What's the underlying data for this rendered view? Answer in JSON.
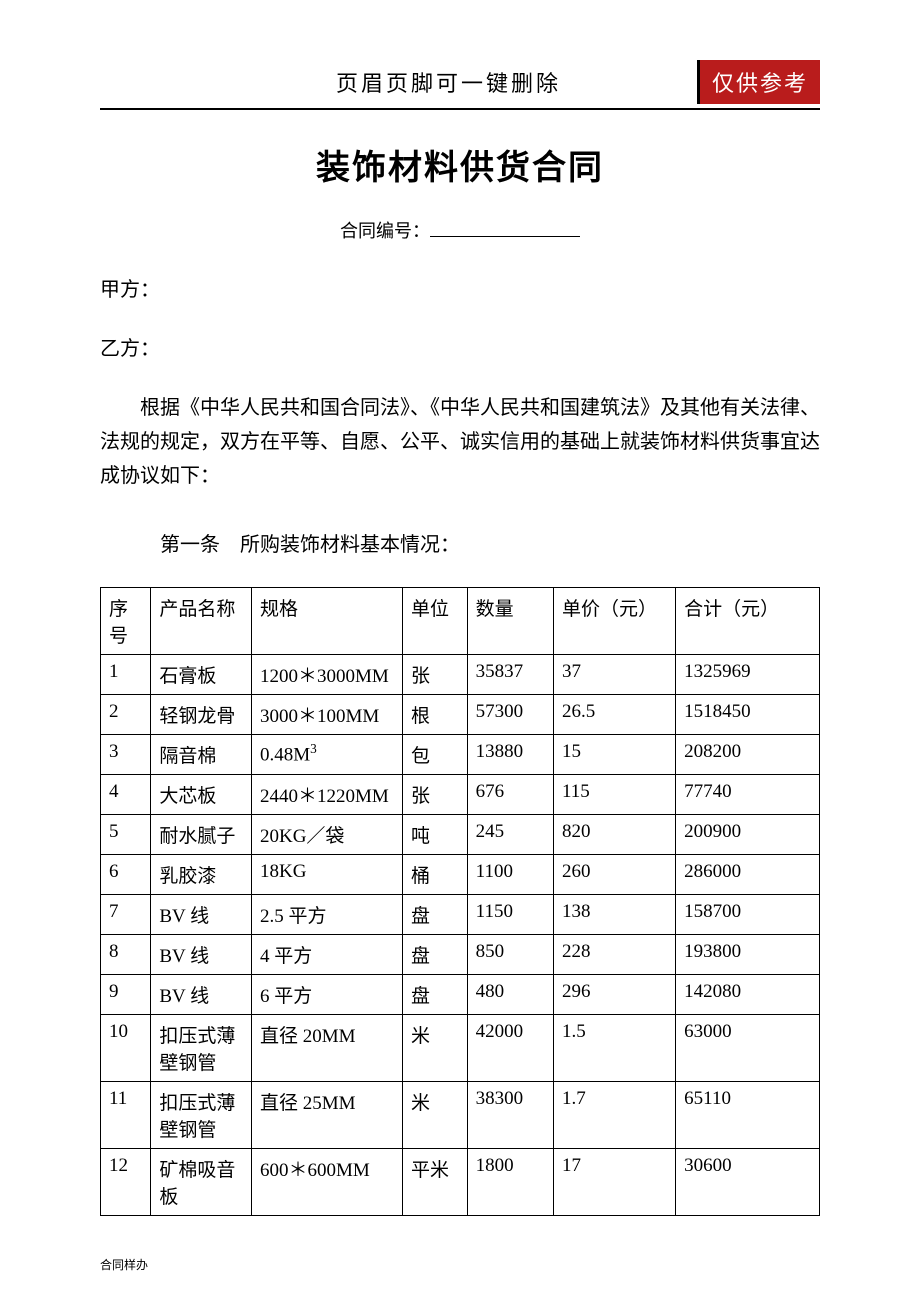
{
  "header": {
    "text": "页眉页脚可一键删除",
    "badge": "仅供参考"
  },
  "title": "装饰材料供货合同",
  "contract_number_label": "合同编号：",
  "party_a": "甲方：",
  "party_b": "乙方：",
  "intro": "根据《中华人民共和国合同法》、《中华人民共和国建筑法》及其他有关法律、法规的规定，双方在平等、自愿、公平、诚实信用的基础上就装饰材料供货事宜达成协议如下：",
  "section1": "第一条　所购装饰材料基本情况：",
  "table": {
    "columns": [
      "序号",
      "产品名称",
      "规格",
      "单位",
      "数量",
      "单价（元）",
      "合计（元）"
    ],
    "rows": [
      {
        "no": "1",
        "name": "石膏板",
        "spec": "1200＊3000MM",
        "unit": "张",
        "qty": "35837",
        "price": "37",
        "total": "1325969"
      },
      {
        "no": "2",
        "name": "轻钢龙骨",
        "spec": "3000＊100MM",
        "unit": "根",
        "qty": "57300",
        "price": "26.5",
        "total": "1518450"
      },
      {
        "no": "3",
        "name": "隔音棉",
        "spec": "0.48M³",
        "unit": "包",
        "qty": "13880",
        "price": "15",
        "total": "208200"
      },
      {
        "no": "4",
        "name": "大芯板",
        "spec": "2440＊1220MM",
        "unit": "张",
        "qty": "676",
        "price": "115",
        "total": "77740"
      },
      {
        "no": "5",
        "name": "耐水腻子",
        "spec": "20KG／袋",
        "unit": "吨",
        "qty": "245",
        "price": "820",
        "total": "200900"
      },
      {
        "no": "6",
        "name": "乳胶漆",
        "spec": "18KG",
        "unit": "桶",
        "qty": "1100",
        "price": "260",
        "total": "286000"
      },
      {
        "no": "7",
        "name": "BV 线",
        "spec": "2.5 平方",
        "unit": "盘",
        "qty": "1150",
        "price": "138",
        "total": "158700"
      },
      {
        "no": "8",
        "name": "BV 线",
        "spec": "4 平方",
        "unit": "盘",
        "qty": "850",
        "price": "228",
        "total": "193800"
      },
      {
        "no": "9",
        "name": "BV 线",
        "spec": "6 平方",
        "unit": "盘",
        "qty": "480",
        "price": "296",
        "total": "142080"
      },
      {
        "no": "10",
        "name": "扣压式薄壁钢管",
        "spec": "直径 20MM",
        "unit": "米",
        "qty": "42000",
        "price": "1.5",
        "total": "63000"
      },
      {
        "no": "11",
        "name": "扣压式薄壁钢管",
        "spec": "直径 25MM",
        "unit": "米",
        "qty": "38300",
        "price": "1.7",
        "total": "65110"
      },
      {
        "no": "12",
        "name": "矿棉吸音板",
        "spec": "600＊600MM",
        "unit": "平米",
        "qty": "1800",
        "price": "17",
        "total": "30600"
      }
    ]
  },
  "footer": "合同样办"
}
